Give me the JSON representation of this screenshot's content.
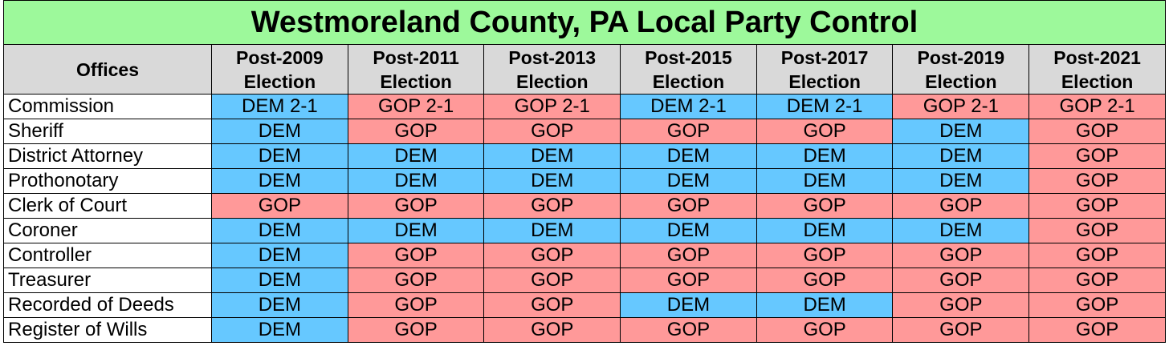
{
  "title": "Westmoreland County, PA Local Party Control",
  "header": {
    "offices_label": "Offices",
    "columns": [
      {
        "line1": "Post-2009",
        "line2": "Election"
      },
      {
        "line1": "Post-2011",
        "line2": "Election"
      },
      {
        "line1": "Post-2013",
        "line2": "Election"
      },
      {
        "line1": "Post-2015",
        "line2": "Election"
      },
      {
        "line1": "Post-2017",
        "line2": "Election"
      },
      {
        "line1": "Post-2019",
        "line2": "Election"
      },
      {
        "line1": "Post-2021",
        "line2": "Election"
      }
    ]
  },
  "colors": {
    "title_bg": "#9df99b",
    "header_bg": "#d9d9d9",
    "dem": "#66c8ff",
    "gop": "#ff9999"
  },
  "rows": [
    {
      "office": "Commission",
      "cells": [
        "DEM 2-1",
        "GOP 2-1",
        "GOP 2-1",
        "DEM 2-1",
        "DEM 2-1",
        "GOP 2-1",
        "GOP 2-1"
      ]
    },
    {
      "office": "Sheriff",
      "cells": [
        "DEM",
        "GOP",
        "GOP",
        "GOP",
        "GOP",
        "DEM",
        "GOP"
      ]
    },
    {
      "office": "District Attorney",
      "cells": [
        "DEM",
        "DEM",
        "DEM",
        "DEM",
        "DEM",
        "DEM",
        "GOP"
      ]
    },
    {
      "office": "Prothonotary",
      "cells": [
        "DEM",
        "DEM",
        "DEM",
        "DEM",
        "DEM",
        "DEM",
        "GOP"
      ]
    },
    {
      "office": "Clerk of Court",
      "cells": [
        "GOP",
        "GOP",
        "GOP",
        "GOP",
        "GOP",
        "GOP",
        "GOP"
      ]
    },
    {
      "office": "Coroner",
      "cells": [
        "DEM",
        "DEM",
        "DEM",
        "DEM",
        "DEM",
        "DEM",
        "GOP"
      ]
    },
    {
      "office": "Controller",
      "cells": [
        "DEM",
        "GOP",
        "GOP",
        "GOP",
        "GOP",
        "GOP",
        "GOP"
      ]
    },
    {
      "office": "Treasurer",
      "cells": [
        "DEM",
        "GOP",
        "GOP",
        "GOP",
        "GOP",
        "GOP",
        "GOP"
      ]
    },
    {
      "office": "Recorded of Deeds",
      "cells": [
        "DEM",
        "GOP",
        "GOP",
        "DEM",
        "DEM",
        "GOP",
        "GOP"
      ]
    },
    {
      "office": "Register of Wills",
      "cells": [
        "DEM",
        "GOP",
        "GOP",
        "GOP",
        "GOP",
        "GOP",
        "GOP"
      ]
    }
  ]
}
